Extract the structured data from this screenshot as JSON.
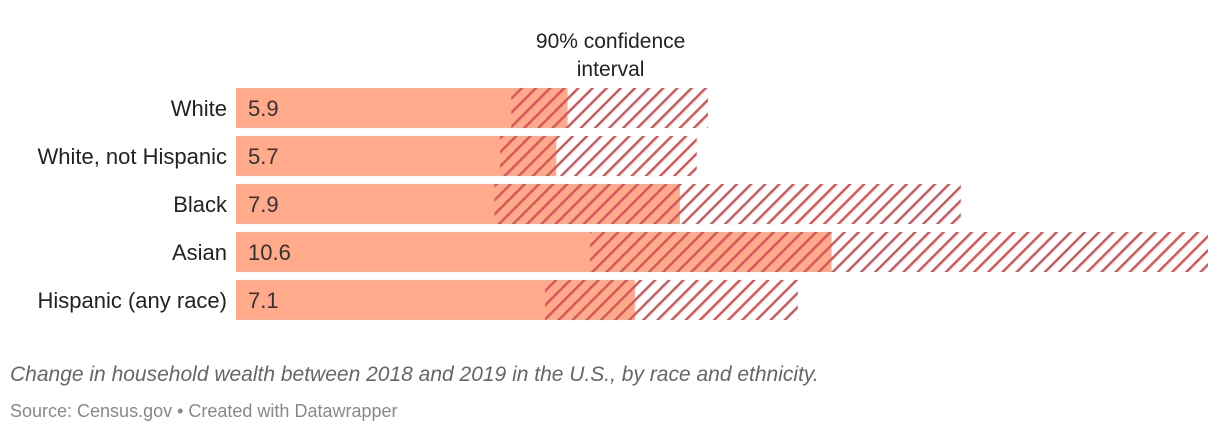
{
  "chart_data": {
    "type": "bar",
    "orientation": "horizontal",
    "categories": [
      "White",
      "White, not Hispanic",
      "Black",
      "Asian",
      "Hispanic (any race)"
    ],
    "values": [
      5.9,
      5.7,
      7.9,
      10.6,
      7.1
    ],
    "value_labels": [
      "5.9",
      "5.7",
      "7.9",
      "10.6",
      "7.1"
    ],
    "ci_low": [
      4.9,
      4.7,
      4.6,
      6.3,
      5.5
    ],
    "ci_high": [
      8.4,
      8.2,
      12.9,
      17.3,
      10.0
    ],
    "annotation": "90% confidence interval",
    "annotation_lines": [
      "90% confidence",
      "interval"
    ],
    "xlim": [
      0,
      17.3
    ],
    "colors": {
      "bar": "#ffaa8b",
      "ci": "#d8585a"
    }
  },
  "caption": "Change in household wealth between 2018 and 2019 in the U.S., by race and ethnicity.",
  "source": "Source: Census.gov • Created with Datawrapper"
}
